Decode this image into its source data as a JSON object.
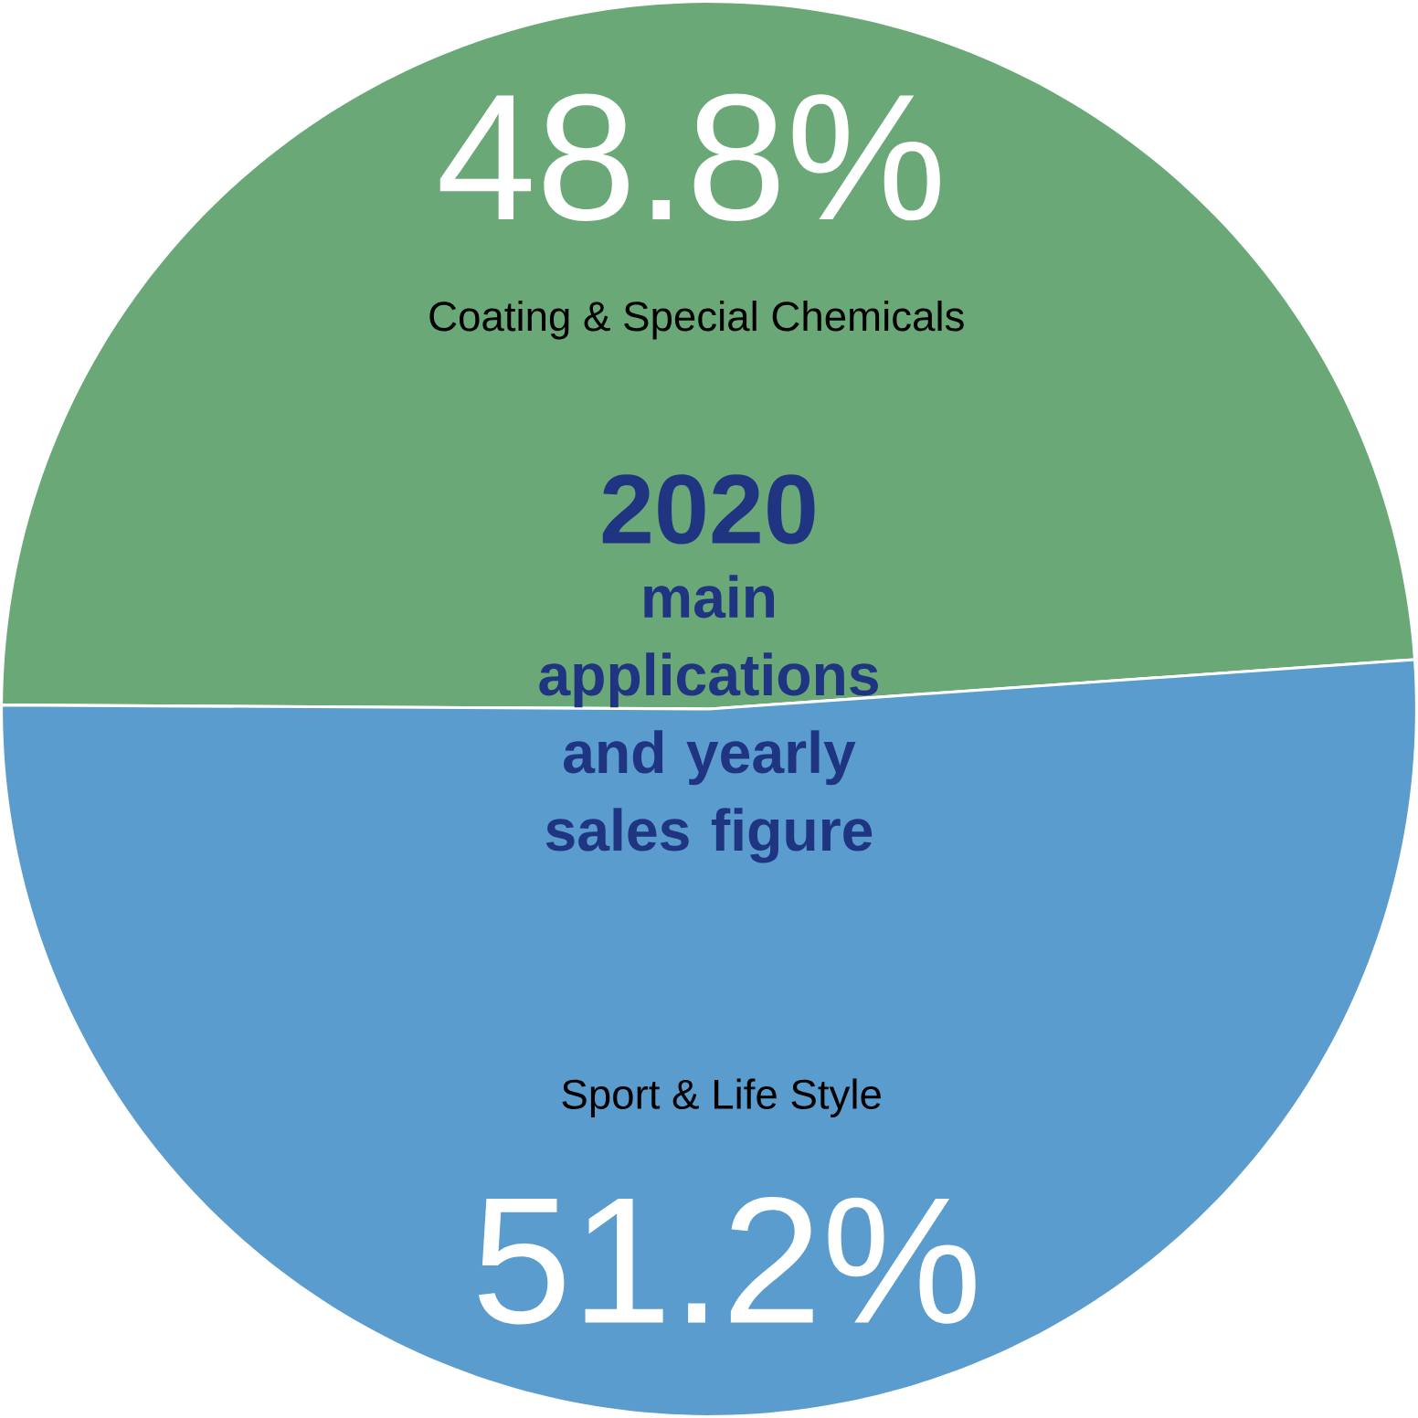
{
  "chart_data": {
    "type": "pie",
    "title": "2020",
    "subtitle": "main applications and yearly sales figure",
    "categories": [
      "Coating & Special Chemicals",
      "Sport & Life Style"
    ],
    "values": [
      48.8,
      51.2
    ],
    "colors": [
      "#6aa877",
      "#5a9ccd"
    ],
    "value_labels": [
      "48.8%",
      "51.2%"
    ]
  }
}
